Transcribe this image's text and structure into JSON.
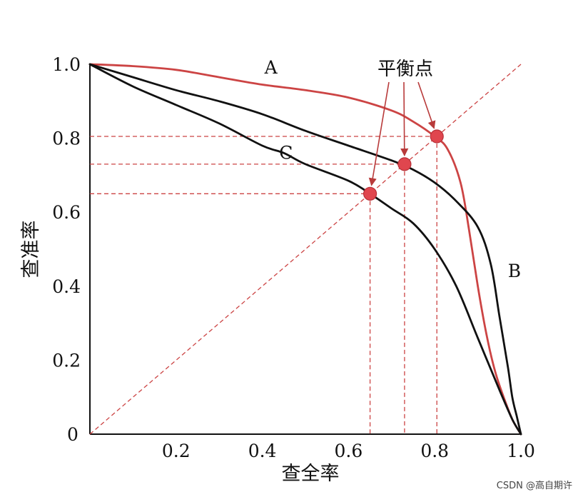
{
  "chart_data": {
    "type": "line",
    "xlabel": "查全率",
    "ylabel": "查准率",
    "xlim": [
      0,
      1
    ],
    "ylim": [
      0,
      1
    ],
    "x_ticks": [
      {
        "v": 0,
        "label": "0"
      },
      {
        "v": 0.2,
        "label": "0.2"
      },
      {
        "v": 0.4,
        "label": "0.4"
      },
      {
        "v": 0.6,
        "label": "0.6"
      },
      {
        "v": 0.8,
        "label": "0.8"
      },
      {
        "v": 1.0,
        "label": "1.0"
      }
    ],
    "y_ticks": [
      {
        "v": 0.2,
        "label": "0.2"
      },
      {
        "v": 0.4,
        "label": "0.4"
      },
      {
        "v": 0.6,
        "label": "0.6"
      },
      {
        "v": 0.8,
        "label": "0.8"
      },
      {
        "v": 1.0,
        "label": "1.0"
      }
    ],
    "grid": false,
    "series": [
      {
        "name": "A",
        "color": "#cc4444",
        "points": [
          [
            0,
            1.0
          ],
          [
            0.1,
            0.995
          ],
          [
            0.2,
            0.985
          ],
          [
            0.3,
            0.965
          ],
          [
            0.4,
            0.945
          ],
          [
            0.5,
            0.93
          ],
          [
            0.6,
            0.91
          ],
          [
            0.7,
            0.875
          ],
          [
            0.75,
            0.845
          ],
          [
            0.8,
            0.805
          ],
          [
            0.83,
            0.77
          ],
          [
            0.86,
            0.68
          ],
          [
            0.88,
            0.55
          ],
          [
            0.9,
            0.4
          ],
          [
            0.92,
            0.27
          ],
          [
            0.94,
            0.17
          ],
          [
            0.96,
            0.1
          ],
          [
            0.98,
            0.04
          ],
          [
            1.0,
            0
          ]
        ]
      },
      {
        "name": "B",
        "color": "#111111",
        "points": [
          [
            0,
            1.0
          ],
          [
            0.1,
            0.965
          ],
          [
            0.2,
            0.93
          ],
          [
            0.3,
            0.9
          ],
          [
            0.4,
            0.865
          ],
          [
            0.5,
            0.82
          ],
          [
            0.6,
            0.78
          ],
          [
            0.7,
            0.74
          ],
          [
            0.75,
            0.715
          ],
          [
            0.8,
            0.68
          ],
          [
            0.85,
            0.63
          ],
          [
            0.9,
            0.56
          ],
          [
            0.93,
            0.46
          ],
          [
            0.95,
            0.32
          ],
          [
            0.97,
            0.18
          ],
          [
            0.98,
            0.1
          ],
          [
            0.99,
            0.05
          ],
          [
            1.0,
            0
          ]
        ]
      },
      {
        "name": "C",
        "color": "#111111",
        "points": [
          [
            0,
            1.0
          ],
          [
            0.1,
            0.94
          ],
          [
            0.2,
            0.89
          ],
          [
            0.3,
            0.84
          ],
          [
            0.4,
            0.78
          ],
          [
            0.45,
            0.76
          ],
          [
            0.5,
            0.73
          ],
          [
            0.6,
            0.685
          ],
          [
            0.65,
            0.65
          ],
          [
            0.7,
            0.61
          ],
          [
            0.75,
            0.57
          ],
          [
            0.8,
            0.5
          ],
          [
            0.85,
            0.4
          ],
          [
            0.9,
            0.26
          ],
          [
            0.95,
            0.12
          ],
          [
            0.98,
            0.04
          ],
          [
            1.0,
            0
          ]
        ]
      }
    ],
    "reference_line": {
      "from": [
        0,
        0
      ],
      "to": [
        1,
        1
      ],
      "style": "dashed",
      "color": "#cc4444"
    },
    "break_even_points": [
      {
        "x": 0.65,
        "y": 0.65
      },
      {
        "x": 0.73,
        "y": 0.73
      },
      {
        "x": 0.805,
        "y": 0.805
      }
    ],
    "curve_labels": [
      {
        "text": "A",
        "x": 0.42,
        "y": 0.99
      },
      {
        "text": "B",
        "x": 0.985,
        "y": 0.44
      },
      {
        "text": "C",
        "x": 0.455,
        "y": 0.76
      }
    ],
    "annotation": {
      "text": "平衡点"
    }
  },
  "watermark": "CSDN @高自期许"
}
